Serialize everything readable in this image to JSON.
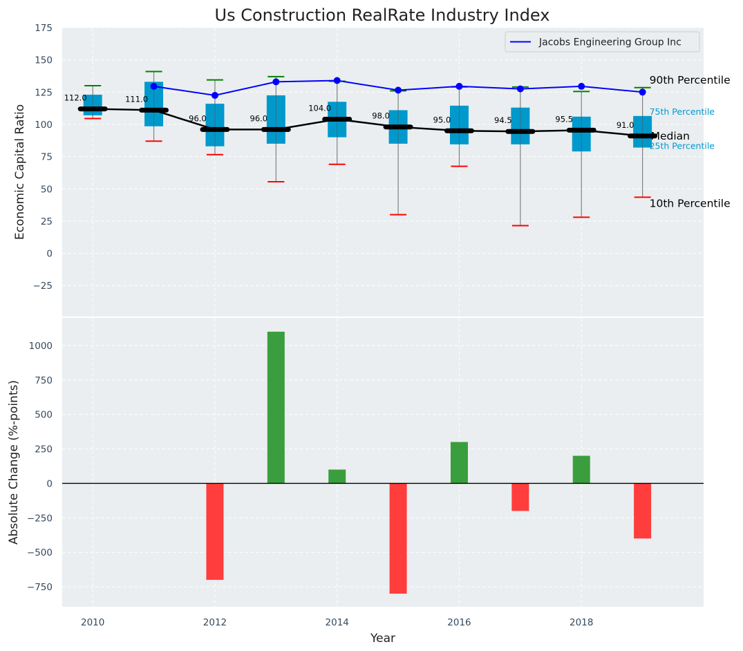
{
  "chart_data": [
    {
      "type": "box",
      "title": "Us Construction RealRate Industry Index",
      "xlabel": "",
      "ylabel": "Economic Capital Ratio",
      "xlim": [
        2009.5,
        2020
      ],
      "ylim": [
        -49,
        175
      ],
      "grid": true,
      "yticks": [
        175,
        150,
        125,
        100,
        75,
        50,
        25,
        0,
        -25
      ],
      "ytick_labels": [
        "175",
        "150",
        "125",
        "100",
        "75",
        "50",
        "25",
        "0",
        "−25"
      ],
      "years": [
        2010,
        2011,
        2012,
        2013,
        2014,
        2015,
        2016,
        2017,
        2018,
        2019
      ],
      "p90": [
        130,
        141,
        134.5,
        137,
        133.5,
        126,
        129,
        129,
        125.5,
        128.5
      ],
      "p75": [
        123,
        133,
        116,
        122.5,
        117.5,
        111,
        114.5,
        113,
        106,
        106.5
      ],
      "median": [
        112,
        111,
        96,
        96,
        104,
        98,
        95,
        94.5,
        95.5,
        91
      ],
      "median_labels": [
        "112.0",
        "111.0",
        "96.0",
        "96.0",
        "104.0",
        "98.0",
        "95.0",
        "94.5",
        "95.5",
        "91.0"
      ],
      "p25": [
        107,
        98.5,
        83,
        85,
        90,
        85,
        84.5,
        84.5,
        79,
        82
      ],
      "p10": [
        104.5,
        87,
        76.5,
        55.5,
        69,
        30,
        67.5,
        21.5,
        28,
        43.5
      ],
      "company_series": {
        "name": "Jacobs Engineering Group Inc",
        "years": [
          2011,
          2012,
          2013,
          2014,
          2015,
          2016,
          2017,
          2018,
          2019
        ],
        "values": [
          129.5,
          122.5,
          133,
          134,
          126.5,
          129.5,
          127.5,
          129.5,
          125
        ]
      },
      "legend": {
        "entries": [
          "Jacobs Engineering Group Inc"
        ],
        "position": "top-right"
      },
      "annotations": {
        "p90": "90th Percentile",
        "p75": "75th Percentile",
        "median": "Median",
        "p25": "25th Percentile",
        "p10": "10th Percentile"
      },
      "colors": {
        "box": "#0099cc",
        "p90_whisker": "#008000",
        "p10_whisker": "#ff0000",
        "median_line": "#000000",
        "company_line": "#0000ff",
        "annot_quartile": "#0099cc",
        "background": "#eaeef0"
      }
    },
    {
      "type": "bar",
      "xlabel": "Year",
      "ylabel": "Absolute Change (%-points)",
      "xlim": [
        2009.5,
        2020
      ],
      "ylim": [
        -895,
        1200
      ],
      "grid": true,
      "yticks": [
        1000,
        750,
        500,
        250,
        0,
        -250,
        -500,
        -750
      ],
      "ytick_labels": [
        "1000",
        "750",
        "500",
        "250",
        "0",
        "−250",
        "−500",
        "−750"
      ],
      "xticks": [
        2010,
        2012,
        2014,
        2016,
        2018
      ],
      "xtick_labels": [
        "2010",
        "2012",
        "2014",
        "2016",
        "2018"
      ],
      "categories": [
        2012,
        2013,
        2014,
        2015,
        2016,
        2017,
        2018,
        2019
      ],
      "values": [
        -700,
        1100,
        100,
        -800,
        300,
        -200,
        200,
        -400
      ],
      "colors": {
        "positive": "#3a9e3e",
        "negative": "#ff3d3d",
        "zero_line": "#000000"
      }
    }
  ]
}
